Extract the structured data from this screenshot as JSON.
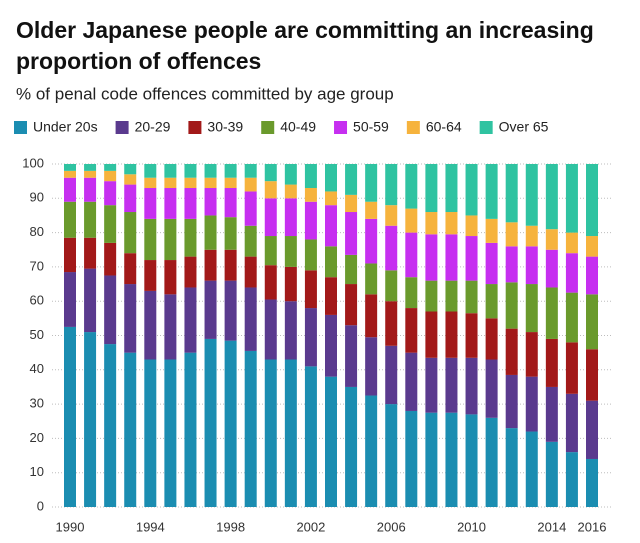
{
  "chart_data": {
    "type": "stacked_bar",
    "title": "Older Japanese people are committing an increasing proportion of offences",
    "subtitle": "% of penal code offences committed by age group",
    "x": [
      1990,
      1991,
      1992,
      1993,
      1994,
      1995,
      1996,
      1997,
      1998,
      1999,
      2000,
      2001,
      2002,
      2003,
      2004,
      2005,
      2006,
      2007,
      2008,
      2009,
      2010,
      2011,
      2012,
      2013,
      2014,
      2015,
      2016
    ],
    "xlim": [
      1989.4,
      2016.6
    ],
    "xticks": [
      1990,
      1994,
      1998,
      2002,
      2006,
      2010,
      2014,
      2016
    ],
    "ylim": [
      0,
      100
    ],
    "yticks": [
      0,
      10,
      20,
      30,
      40,
      50,
      60,
      70,
      80,
      90,
      100
    ],
    "grid": true,
    "series": [
      {
        "name": "Under 20s",
        "color": "#1b8db1",
        "values": [
          52.5,
          51,
          47.5,
          45,
          43,
          43,
          45,
          49,
          48.5,
          45.5,
          43,
          43,
          41,
          38,
          35,
          32.5,
          30,
          28,
          27.5,
          27.5,
          27,
          26,
          23,
          22,
          19,
          16,
          14
        ]
      },
      {
        "name": "20-29",
        "color": "#5a3a8e",
        "values": [
          16,
          18.5,
          20,
          20,
          20,
          19,
          19,
          17,
          17.5,
          18.5,
          17.5,
          17,
          17,
          18,
          18,
          17,
          17,
          17,
          16,
          16,
          16.5,
          17,
          15.5,
          16,
          16,
          17,
          17
        ]
      },
      {
        "name": "30-39",
        "color": "#a21919",
        "values": [
          10,
          9,
          9.5,
          9,
          9,
          10,
          9,
          9,
          9,
          9,
          10,
          10,
          11,
          11,
          12,
          12.5,
          13,
          13,
          13.5,
          13.5,
          13,
          12,
          13.5,
          13,
          14,
          15,
          15
        ]
      },
      {
        "name": "40-49",
        "color": "#6a9a2c",
        "values": [
          10.5,
          10.5,
          11,
          12,
          12,
          12,
          11,
          10,
          9.5,
          9,
          8.5,
          9,
          9,
          9,
          8.5,
          9,
          9,
          9,
          9,
          9,
          9.5,
          10,
          13.5,
          14,
          15,
          14.5,
          16
        ]
      },
      {
        "name": "50-59",
        "color": "#c62ff0",
        "values": [
          7,
          7,
          7,
          8,
          9,
          9,
          9,
          8,
          8.5,
          10,
          11,
          11,
          11,
          12,
          12.5,
          13,
          13,
          13,
          13.5,
          13.5,
          13,
          12,
          10.5,
          11,
          11,
          11.5,
          11
        ]
      },
      {
        "name": "60-64",
        "color": "#f6b33d",
        "values": [
          2,
          2,
          3,
          3,
          3,
          3,
          3,
          3,
          3,
          4,
          5,
          4,
          4,
          4,
          5,
          5,
          6,
          7,
          6.5,
          6.5,
          6,
          7,
          7,
          6,
          6,
          6,
          6
        ]
      },
      {
        "name": "Over 65",
        "color": "#2fc3a1",
        "values": [
          2,
          2,
          2,
          3,
          4,
          4,
          4,
          4,
          4,
          4,
          5,
          6,
          7,
          8,
          9,
          11,
          12,
          13,
          14,
          14,
          15,
          16,
          17,
          18,
          19,
          20,
          21
        ]
      }
    ]
  }
}
